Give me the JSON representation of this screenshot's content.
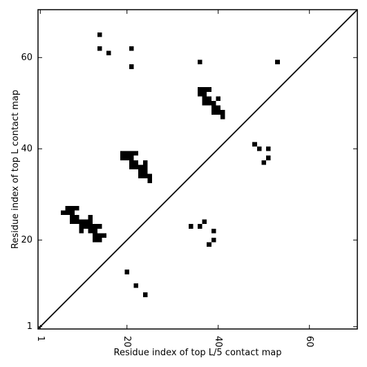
{
  "chart_data": {
    "type": "scatter",
    "title": "",
    "xlabel": "Residue index of top L/5 contact map",
    "ylabel": "Residue index of top L contact map",
    "xlim": [
      0.5,
      70.5
    ],
    "ylim": [
      0.5,
      70.5
    ],
    "x_ticks": [
      1,
      20,
      40,
      60
    ],
    "y_ticks": [
      1,
      20,
      40,
      60
    ],
    "x_tick_labels": [
      "1",
      "20",
      "40",
      "60"
    ],
    "y_tick_labels": [
      "1",
      "20",
      "40",
      "60"
    ],
    "x_tick_rotation": -90,
    "grid": false,
    "diagonal": {
      "from": 0.5,
      "to": 70.5
    },
    "colors": {
      "marker": "#000000",
      "diagonal": "#000000",
      "frame": "#000000"
    },
    "series": [
      {
        "points": [
          [
            6,
            26
          ],
          [
            7,
            26
          ],
          [
            8,
            26
          ],
          [
            7,
            27
          ],
          [
            8,
            27
          ],
          [
            9,
            27
          ],
          [
            8,
            24
          ],
          [
            8,
            25
          ],
          [
            9,
            24
          ],
          [
            9,
            25
          ],
          [
            10,
            24
          ],
          [
            10,
            23
          ],
          [
            10,
            22
          ],
          [
            11,
            23
          ],
          [
            11,
            24
          ],
          [
            12,
            24
          ],
          [
            12,
            25
          ],
          [
            12,
            23
          ],
          [
            13,
            23
          ],
          [
            14,
            23
          ],
          [
            12,
            22
          ],
          [
            13,
            22
          ],
          [
            13,
            21
          ],
          [
            14,
            21
          ],
          [
            15,
            21
          ],
          [
            13,
            20
          ],
          [
            14,
            20
          ],
          [
            19,
            38
          ],
          [
            19,
            39
          ],
          [
            20,
            38
          ],
          [
            20,
            39
          ],
          [
            21,
            38
          ],
          [
            21,
            39
          ],
          [
            22,
            39
          ],
          [
            21,
            37
          ],
          [
            22,
            37
          ],
          [
            21,
            36
          ],
          [
            22,
            36
          ],
          [
            23,
            36
          ],
          [
            24,
            36
          ],
          [
            24,
            37
          ],
          [
            23,
            35
          ],
          [
            24,
            35
          ],
          [
            23,
            34
          ],
          [
            24,
            34
          ],
          [
            25,
            34
          ],
          [
            25,
            33
          ],
          [
            36,
            52
          ],
          [
            36,
            53
          ],
          [
            37,
            52
          ],
          [
            37,
            53
          ],
          [
            38,
            53
          ],
          [
            37,
            51
          ],
          [
            37,
            50
          ],
          [
            38,
            51
          ],
          [
            38,
            50
          ],
          [
            39,
            50
          ],
          [
            40,
            51
          ],
          [
            39,
            49
          ],
          [
            39,
            48
          ],
          [
            40,
            49
          ],
          [
            40,
            48
          ],
          [
            41,
            48
          ],
          [
            41,
            47
          ],
          [
            14,
            65
          ],
          [
            14,
            62
          ],
          [
            16,
            61
          ],
          [
            21,
            62
          ],
          [
            21,
            58
          ],
          [
            36,
            59
          ],
          [
            53,
            59
          ],
          [
            48,
            41
          ],
          [
            49,
            40
          ],
          [
            51,
            40
          ],
          [
            50,
            37
          ],
          [
            51,
            38
          ],
          [
            34,
            23
          ],
          [
            36,
            23
          ],
          [
            37,
            24
          ],
          [
            39,
            22
          ],
          [
            38,
            19
          ],
          [
            39,
            20
          ],
          [
            20,
            13
          ],
          [
            22,
            10
          ],
          [
            24,
            8
          ]
        ]
      }
    ]
  }
}
